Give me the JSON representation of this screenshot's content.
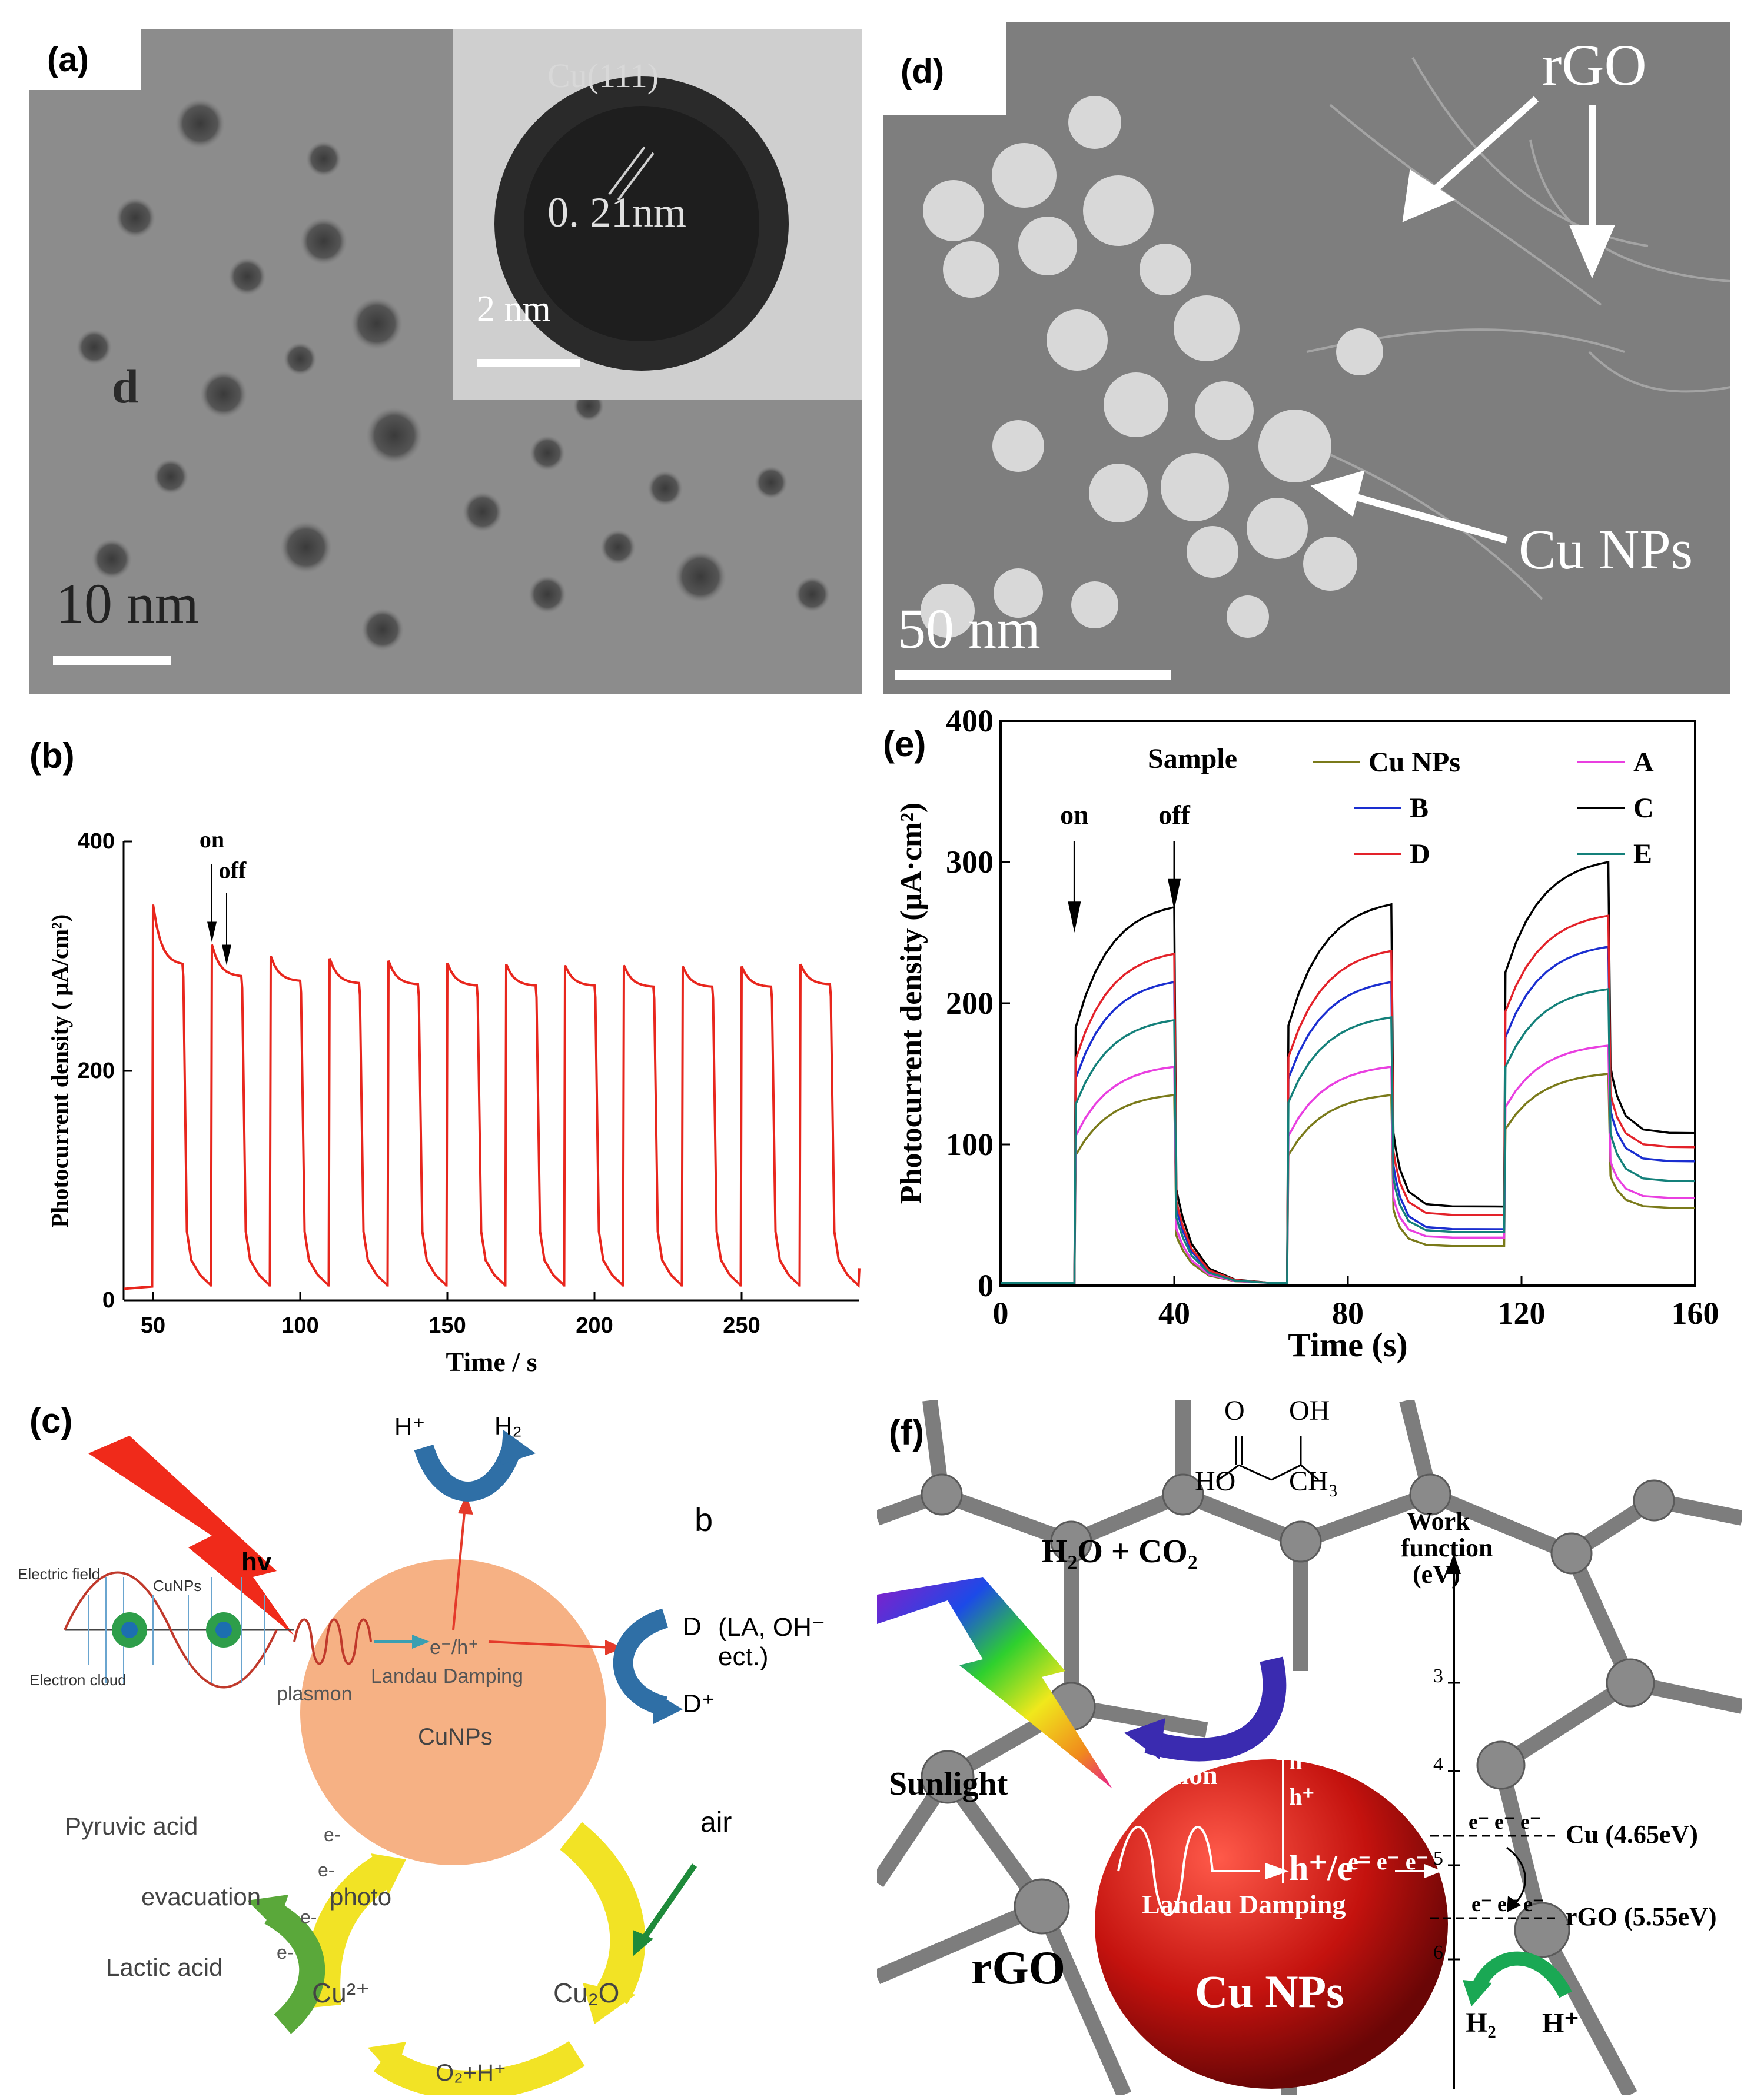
{
  "panels": {
    "a": {
      "label": "(a)",
      "scale_text": "10 nm",
      "particle_letter": "d",
      "inset": {
        "plane": "Cu(111)",
        "spacing": "0. 21nm",
        "scale_text": "2 nm"
      }
    },
    "d": {
      "label": "(d)",
      "rgo_label": "rGO",
      "cu_label": "Cu NPs",
      "scale_text": "50 nm"
    },
    "b": {
      "label": "(b)",
      "on_label": "on",
      "off_label": "off",
      "xlabel": "Time / s",
      "ylabel": "Photocurrent density ( μA/cm²)",
      "xticks": [
        "50",
        "100",
        "150",
        "200",
        "250"
      ],
      "yticks": [
        "0",
        "200",
        "400"
      ]
    },
    "e": {
      "label": "(e)",
      "on_label": "on",
      "off_label": "off",
      "xlabel": "Time (s)",
      "ylabel": "Photocurrent density (μA·cm²)",
      "legend_title": "Sample",
      "xticks": [
        "0",
        "40",
        "80",
        "120",
        "160"
      ],
      "yticks": [
        "0",
        "100",
        "200",
        "300",
        "400"
      ]
    },
    "c": {
      "label": "(c)",
      "h_plus": "H⁺",
      "h2": "H₂",
      "hv": "hv",
      "b": "b",
      "electric_field": "Electric field",
      "cunps_small": "CuNPs",
      "electron_cloud": "Electron cloud",
      "plasmon": "plasmon",
      "eh": "e⁻/h⁺",
      "landau": "Landau Damping",
      "cunps": "CuNPs",
      "d_label": "D",
      "d_desc": "(LA, OH⁻ ect.)",
      "d_plus": "D⁺",
      "air": "air",
      "pyruvic": "Pyruvic acid",
      "evacuation": "evacuation",
      "photo": "photo",
      "lactic": "Lactic acid",
      "electron": "e-",
      "cu2": "Cu²⁺",
      "cu2o": "Cu₂O",
      "o2h": "O₂+H⁺"
    },
    "f": {
      "label": "(f)",
      "mol_o": "O",
      "mol_oh": "OH",
      "mol_ho": "HO",
      "mol_ch3": "CH₃",
      "h2o_co2": "H₂O + CO₂",
      "work_function": [
        "Work",
        "function",
        "(eV)"
      ],
      "sunlight": "Sunlight",
      "plasmon": "Plasmon",
      "hplus": "h⁺",
      "he": "h⁺/e⁻",
      "electrons": "e⁻ e⁻ e⁻",
      "landau": "Landau Damping",
      "rgo": "rGO",
      "cu_nps": "Cu NPs",
      "cu_level": "Cu (4.65eV)",
      "rgo_level": "rGO (5.55eV)",
      "h2": "H₂",
      "h_plus": "H⁺",
      "axis_ticks": [
        "3",
        "4",
        "5",
        "6"
      ]
    }
  },
  "chart_data": [
    {
      "panel": "b",
      "type": "line",
      "title": "",
      "xlabel": "Time / s",
      "ylabel": "Photocurrent density ( μA/cm²)",
      "xlim": [
        40,
        290
      ],
      "ylim": [
        0,
        400
      ],
      "light_cycle_s": 20,
      "light_on_duration_s": 10,
      "first_on_s": 50,
      "on_starts": [
        50,
        70,
        90,
        110,
        130,
        150,
        170,
        190,
        210,
        230,
        250,
        270
      ],
      "peak_values": [
        345,
        310,
        300,
        298,
        296,
        294,
        293,
        292,
        292,
        291,
        291,
        293
      ],
      "plateau_values": [
        292,
        282,
        278,
        276,
        275,
        274,
        274,
        274,
        273,
        273,
        273,
        275
      ],
      "dark_value": 10,
      "series_color": "#e8261d"
    },
    {
      "panel": "e",
      "type": "line",
      "title": "",
      "xlabel": "Time (s)",
      "ylabel": "Photocurrent density (μA·cm²)",
      "xlim": [
        0,
        160
      ],
      "ylim": [
        0,
        400
      ],
      "light_on_intervals": [
        [
          17,
          40
        ],
        [
          66,
          90
        ],
        [
          116,
          140
        ]
      ],
      "legend": "top-right",
      "series": [
        {
          "name": "Cu NPs",
          "color": "#7a7a1a",
          "peaks": [
            135,
            135,
            150
          ],
          "dark_after_2": 28,
          "tail_end": 55
        },
        {
          "name": "A",
          "color": "#e93fe0",
          "peaks": [
            155,
            155,
            170
          ],
          "dark_after_2": 34,
          "tail_end": 62
        },
        {
          "name": "B",
          "color": "#1a2ed0",
          "peaks": [
            215,
            215,
            240
          ],
          "dark_after_2": 40,
          "tail_end": 88
        },
        {
          "name": "C",
          "color": "#000000",
          "peaks": [
            268,
            270,
            300
          ],
          "dark_after_2": 56,
          "tail_end": 108
        },
        {
          "name": "D",
          "color": "#e3222a",
          "peaks": [
            235,
            237,
            262
          ],
          "dark_after_2": 50,
          "tail_end": 98
        },
        {
          "name": "E",
          "color": "#14807a",
          "peaks": [
            188,
            190,
            210
          ],
          "dark_after_2": 38,
          "tail_end": 74
        }
      ]
    }
  ]
}
